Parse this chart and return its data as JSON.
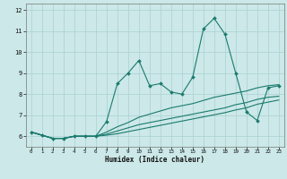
{
  "xlabel": "Humidex (Indice chaleur)",
  "bg_color": "#cce8e8",
  "grid_color": "#aad0d0",
  "line_color": "#1a7a6e",
  "x_min": -0.5,
  "x_max": 23.5,
  "y_min": 5.5,
  "y_max": 12.3,
  "x_ticks": [
    0,
    1,
    2,
    3,
    4,
    5,
    6,
    7,
    8,
    9,
    10,
    11,
    12,
    13,
    14,
    15,
    16,
    17,
    18,
    19,
    20,
    21,
    22,
    23
  ],
  "y_ticks": [
    6,
    7,
    8,
    9,
    10,
    11,
    12
  ],
  "line1_x": [
    0,
    1,
    2,
    3,
    4,
    5,
    6,
    7,
    8,
    9,
    10,
    11,
    12,
    13,
    14,
    15,
    16,
    17,
    18,
    19,
    20,
    21,
    22,
    23
  ],
  "line1_y": [
    6.2,
    6.05,
    5.9,
    5.9,
    6.0,
    6.0,
    6.0,
    6.7,
    8.5,
    9.0,
    9.6,
    8.4,
    8.5,
    8.1,
    8.0,
    8.8,
    11.1,
    11.6,
    10.85,
    9.0,
    7.15,
    6.75,
    8.3,
    8.4
  ],
  "line2_x": [
    0,
    1,
    2,
    3,
    4,
    5,
    6,
    7,
    8,
    9,
    10,
    11,
    12,
    13,
    14,
    15,
    16,
    17,
    18,
    19,
    20,
    21,
    22,
    23
  ],
  "line2_y": [
    6.2,
    6.05,
    5.9,
    5.9,
    6.0,
    6.0,
    6.0,
    6.2,
    6.45,
    6.65,
    6.9,
    7.05,
    7.2,
    7.35,
    7.45,
    7.55,
    7.7,
    7.85,
    7.95,
    8.05,
    8.15,
    8.3,
    8.4,
    8.45
  ],
  "line3_x": [
    0,
    1,
    2,
    3,
    4,
    5,
    6,
    7,
    8,
    9,
    10,
    11,
    12,
    13,
    14,
    15,
    16,
    17,
    18,
    19,
    20,
    21,
    22,
    23
  ],
  "line3_y": [
    6.2,
    6.05,
    5.9,
    5.9,
    6.0,
    6.0,
    6.0,
    6.1,
    6.25,
    6.4,
    6.55,
    6.65,
    6.75,
    6.85,
    6.95,
    7.05,
    7.15,
    7.25,
    7.35,
    7.5,
    7.6,
    7.75,
    7.85,
    7.9
  ],
  "line4_x": [
    0,
    1,
    2,
    3,
    4,
    5,
    6,
    7,
    8,
    9,
    10,
    11,
    12,
    13,
    14,
    15,
    16,
    17,
    18,
    19,
    20,
    21,
    22,
    23
  ],
  "line4_y": [
    6.2,
    6.05,
    5.9,
    5.9,
    6.0,
    6.0,
    6.0,
    6.05,
    6.12,
    6.22,
    6.32,
    6.42,
    6.52,
    6.62,
    6.72,
    6.82,
    6.92,
    7.02,
    7.12,
    7.25,
    7.35,
    7.52,
    7.62,
    7.72
  ]
}
